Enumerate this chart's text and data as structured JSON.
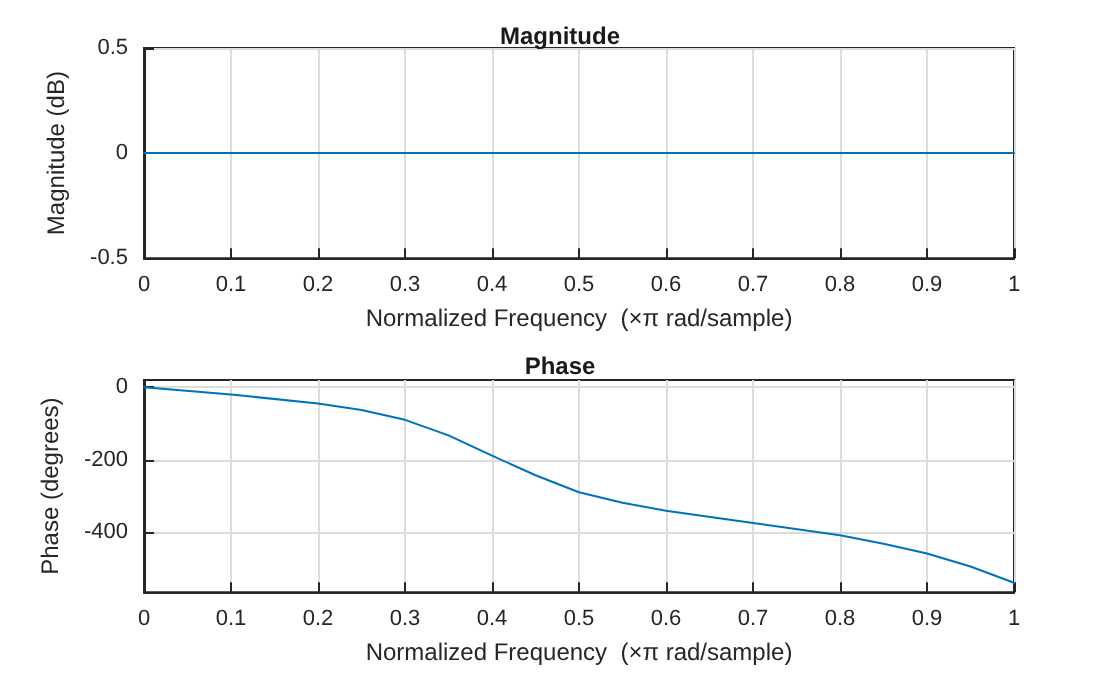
{
  "chart_data": [
    {
      "type": "line",
      "title": "Magnitude",
      "xlabel": "Normalized Frequency  (×π rad/sample)",
      "ylabel": "Magnitude (dB)",
      "series": [
        {
          "color": "#0072bd",
          "x": [
            0,
            0.25,
            0.5,
            0.75,
            1
          ],
          "values": [
            0,
            0,
            0,
            0,
            0
          ]
        }
      ],
      "xlim": [
        0,
        1
      ],
      "xticks": [
        0,
        0.1,
        0.2,
        0.3,
        0.4,
        0.5,
        0.6,
        0.7,
        0.8,
        0.9,
        1
      ],
      "ylim": [
        -0.5,
        0.5
      ],
      "yticks": [
        -0.5,
        0,
        0.5
      ],
      "grid": true,
      "marker": "none",
      "line_style": "solid"
    },
    {
      "type": "line",
      "title": "Phase",
      "xlabel": "Normalized Frequency  (×π rad/sample)",
      "ylabel": "Phase (degrees)",
      "series": [
        {
          "color": "#0072bd",
          "x": [
            0,
            0.1,
            0.2,
            0.25,
            0.3,
            0.35,
            0.4,
            0.45,
            0.5,
            0.55,
            0.6,
            0.7,
            0.8,
            0.85,
            0.9,
            0.95,
            1
          ],
          "values": [
            0,
            -20,
            -45,
            -63,
            -90,
            -133,
            -189,
            -243,
            -290,
            -319,
            -341,
            -375,
            -409,
            -432,
            -459,
            -495,
            -540
          ]
        }
      ],
      "xlim": [
        0,
        1
      ],
      "xticks": [
        0,
        0.1,
        0.2,
        0.3,
        0.4,
        0.5,
        0.6,
        0.7,
        0.8,
        0.9,
        1
      ],
      "ylim": [
        -566,
        20
      ],
      "yticks": [
        -400,
        -200,
        0
      ],
      "grid": true,
      "marker": "none",
      "line_style": "solid"
    }
  ]
}
